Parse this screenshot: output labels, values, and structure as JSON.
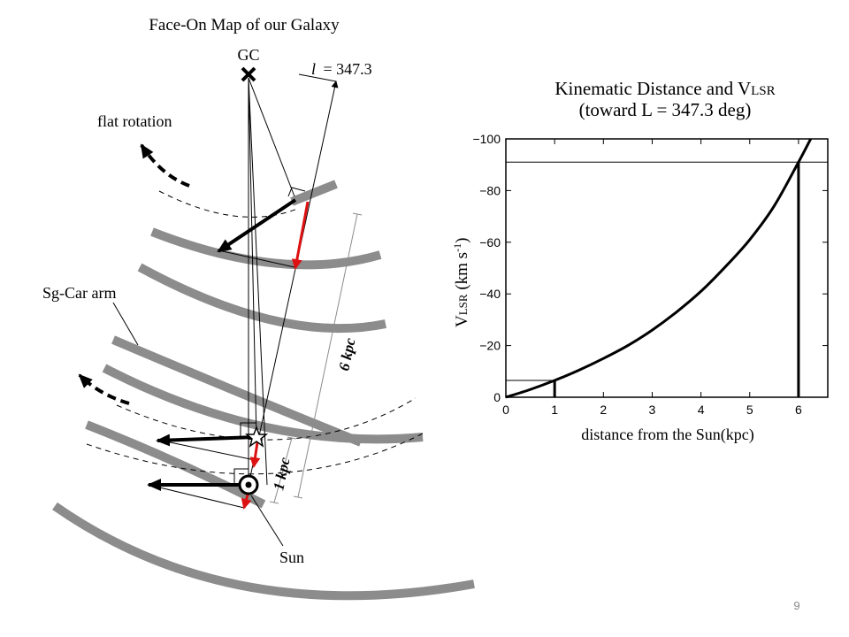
{
  "slide": {
    "page_number": "9"
  },
  "map": {
    "title": "Face-On Map of our Galaxy",
    "gc_label": "GC",
    "gc_marker": "x-mark",
    "los_label_l": "l",
    "los_label_value": "= 347.3",
    "flat_rotation_label": "flat rotation",
    "arm_label": "Sg-Car arm",
    "sun_label": "Sun",
    "scale_6kpc": "6 kpc",
    "scale_1kpc": "1 kpc",
    "colors": {
      "arm": "#8c8c8c",
      "red_arrow": "#dd1111",
      "black": "#000000"
    }
  },
  "chart": {
    "title_line1": "Kinematic Distance and V",
    "title_line1_sub": "LSR",
    "title_line2": "(toward L = 347.3 deg)",
    "ylabel_main": "V",
    "ylabel_sub": "LSR",
    "ylabel_units": " (km s",
    "ylabel_exp": "-1",
    "ylabel_close": ")",
    "xlabel": "distance from the Sun(kpc)"
  },
  "chart_data": {
    "type": "line",
    "title": "Kinematic Distance and VLSR (toward L = 347.3 deg)",
    "xlabel": "distance from the Sun(kpc)",
    "ylabel": "VLSR (km s-1)",
    "xlim": [
      0,
      6.6
    ],
    "ylim": [
      0,
      -100
    ],
    "x_ticks": [
      0,
      1,
      2,
      3,
      4,
      5,
      6
    ],
    "y_ticks": [
      0,
      -20,
      -40,
      -60,
      -80,
      -100
    ],
    "series": [
      {
        "x": [
          0,
          0.5,
          1,
          1.5,
          2,
          2.5,
          3,
          3.5,
          4,
          4.5,
          5,
          5.5,
          6,
          6.25
        ],
        "y": [
          0,
          -3,
          -6.5,
          -10.5,
          -15,
          -20,
          -26,
          -33,
          -41,
          -50.5,
          -61,
          -74,
          -91,
          -100
        ]
      }
    ],
    "markers": [
      {
        "x": 1,
        "y": -6.5
      },
      {
        "x": 6,
        "y": -91
      }
    ],
    "grid": false
  }
}
